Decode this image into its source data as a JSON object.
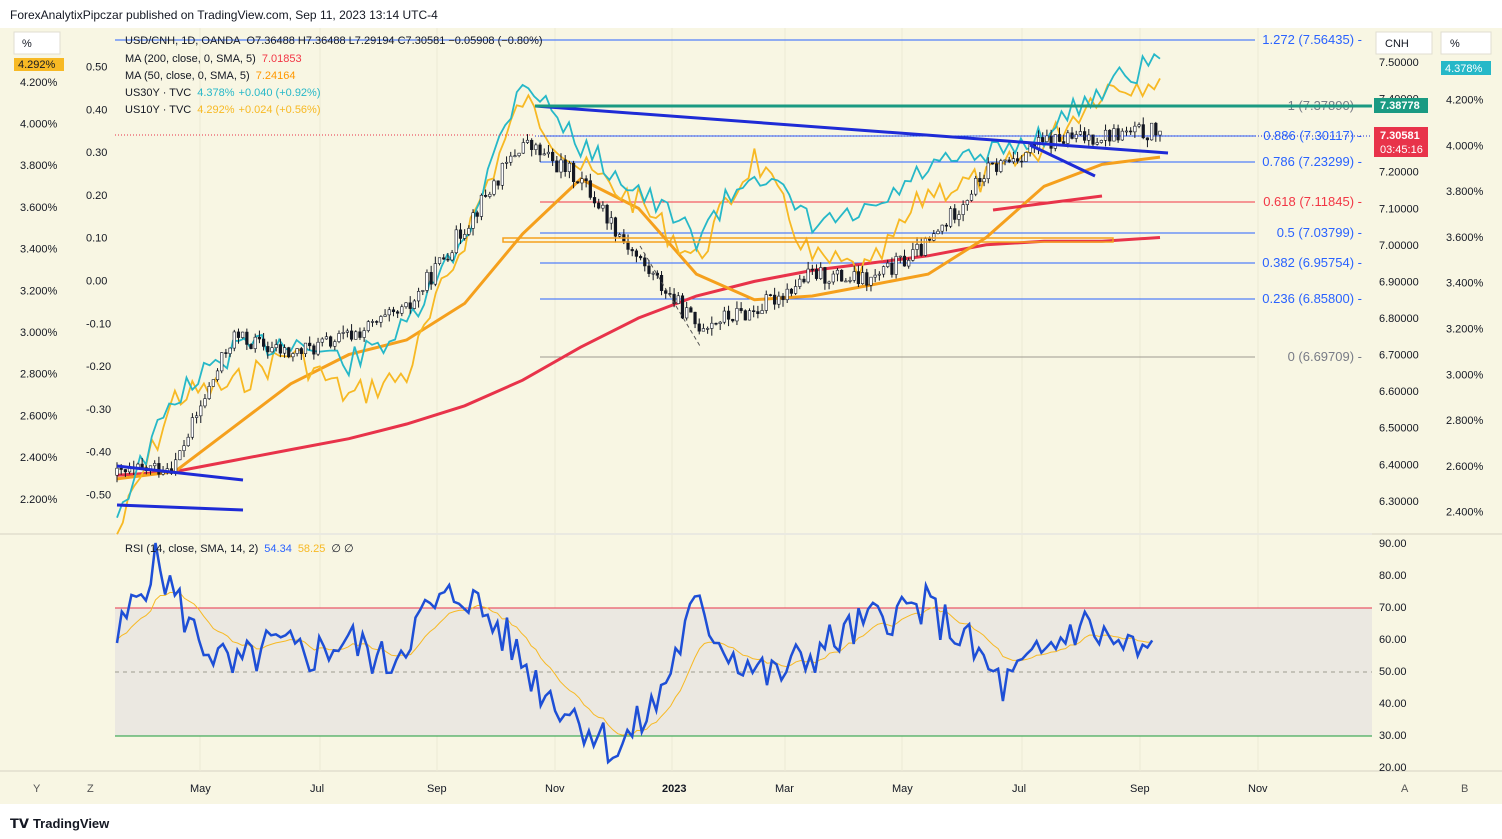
{
  "header": {
    "publisher_line": "ForexAnalytixPipczar published on TradingView.com, Sep 11, 2023 13:14 UTC-4"
  },
  "legend": {
    "main": {
      "symbol": "USD/CNH, 1D, OANDA",
      "ohlc": "O7.36488  H7.36488  L7.29194  C7.30581  −0.05908 (−0.80%)"
    },
    "ma200": {
      "label": "MA (200, close, 0, SMA, 5)",
      "value": "7.01853",
      "color": "#f23645"
    },
    "ma50": {
      "label": "MA (50, close, 0, SMA, 5)",
      "value": "7.24164",
      "color": "#ff9800"
    },
    "us30y": {
      "label": "US30Y · TVC",
      "value": "4.378%",
      "change": "+0.040 (+0.92%)",
      "color": "#26b8c8"
    },
    "us10y": {
      "label": "US10Y · TVC",
      "value": "4.292%",
      "change": "+0.024 (+0.56%)",
      "color": "#f7b924"
    }
  },
  "axes": {
    "left_pct_header": "%",
    "left_pct_badge": "4.292%",
    "left_pct_ticks": [
      "4.200%",
      "4.000%",
      "3.800%",
      "3.600%",
      "3.400%",
      "3.200%",
      "3.000%",
      "2.800%",
      "2.600%",
      "2.400%",
      "2.200%"
    ],
    "left_spread_ticks": [
      "0.50",
      "0.40",
      "0.30",
      "0.20",
      "0.10",
      "0.00",
      "-0.10",
      "-0.20",
      "-0.30",
      "-0.40",
      "-0.50"
    ],
    "right_price_header": "CNH",
    "right_price_ticks": [
      "7.50000",
      "7.40000",
      "7.30000",
      "7.20000",
      "7.10000",
      "7.00000",
      "6.90000",
      "6.80000",
      "6.70000",
      "6.60000",
      "6.50000",
      "6.40000",
      "6.30000"
    ],
    "right_pct_header": "%",
    "right_pct_badge": "4.378%",
    "right_pct_ticks": [
      "4.200%",
      "4.000%",
      "3.800%",
      "3.600%",
      "3.400%",
      "3.200%",
      "3.000%",
      "2.800%",
      "2.600%",
      "2.400%"
    ],
    "price_badge_top": "7.38778",
    "price_badge_last": "7.30581",
    "price_badge_countdown": "03:45:16",
    "rsi_ticks": [
      "90.00",
      "80.00",
      "70.00",
      "60.00",
      "50.00",
      "40.00",
      "30.00",
      "20.00"
    ],
    "time_labels": [
      "May",
      "Jul",
      "Sep",
      "Nov",
      "2023",
      "Mar",
      "May",
      "Jul",
      "Sep",
      "Nov"
    ],
    "bottom_buttons": {
      "y": "Y",
      "z": "Z",
      "a": "A",
      "b": "B"
    }
  },
  "fib": {
    "levels": [
      {
        "label": "1.272 (7.56435)",
        "color": "#2962ff"
      },
      {
        "label": "1 (7.37890)",
        "color": "#787b86"
      },
      {
        "label": "0.886 (7.30117)",
        "color": "#2962ff"
      },
      {
        "label": "0.786 (7.23299)",
        "color": "#2962ff"
      },
      {
        "label": "0.618 (7.11845)",
        "color": "#f23645"
      },
      {
        "label": "0.5 (7.03799)",
        "color": "#2962ff"
      },
      {
        "label": "0.382 (6.95754)",
        "color": "#2962ff"
      },
      {
        "label": "0.236 (6.85800)",
        "color": "#2962ff"
      },
      {
        "label": "0 (6.69709)",
        "color": "#787b86"
      }
    ]
  },
  "rsi": {
    "label": "RSI (14, close, SMA, 14, 2)",
    "value": "54.34",
    "sma_value": "58.25",
    "extra": "∅ ∅"
  },
  "footer": {
    "brand": "TradingView"
  },
  "colors": {
    "bg": "#f8f6e3",
    "rsi_band": "#ebe8e1",
    "blue_line": "#1e2bd6",
    "ma200": "#e8334a",
    "ma50": "#f5a01d"
  },
  "chart_data": {
    "type": "line",
    "title": "USD/CNH, 1D, OANDA",
    "x": [
      "2022-03",
      "2022-04",
      "2022-05",
      "2022-06",
      "2022-07",
      "2022-08",
      "2022-09",
      "2022-10",
      "2022-11",
      "2022-12",
      "2023-01",
      "2023-02",
      "2023-03",
      "2023-04",
      "2023-05",
      "2023-06",
      "2023-07",
      "2023-08",
      "2023-09"
    ],
    "series": [
      {
        "name": "USD/CNH",
        "values": [
          6.37,
          6.4,
          6.75,
          6.7,
          6.75,
          6.82,
          7.05,
          7.28,
          7.18,
          6.96,
          6.78,
          6.82,
          6.92,
          6.9,
          7.0,
          7.2,
          7.28,
          7.3,
          7.31
        ]
      },
      {
        "name": "MA (200, close, 0, SMA, 5)",
        "values": [
          6.37,
          6.38,
          6.41,
          6.44,
          6.47,
          6.51,
          6.56,
          6.63,
          6.72,
          6.8,
          6.86,
          6.9,
          6.93,
          6.95,
          6.97,
          7.0,
          7.01,
          7.01,
          7.02
        ]
      },
      {
        "name": "MA (50, close, 0, SMA, 5)",
        "values": [
          6.36,
          6.38,
          6.5,
          6.62,
          6.7,
          6.74,
          6.84,
          7.03,
          7.18,
          7.1,
          6.92,
          6.85,
          6.86,
          6.89,
          6.92,
          7.02,
          7.16,
          7.22,
          7.24
        ]
      },
      {
        "name": "US30Y · TVC",
        "values": [
          2.4,
          2.9,
          3.1,
          3.15,
          3.05,
          3.2,
          3.6,
          4.3,
          4.0,
          3.8,
          3.6,
          3.9,
          3.65,
          3.7,
          3.9,
          3.95,
          4.05,
          4.25,
          4.378
        ]
      },
      {
        "name": "US10Y · TVC",
        "values": [
          2.3,
          2.9,
          2.95,
          3.1,
          2.9,
          3.0,
          3.6,
          4.2,
          3.9,
          3.75,
          3.5,
          3.95,
          3.5,
          3.45,
          3.8,
          3.85,
          4.0,
          4.25,
          4.292
        ]
      }
    ],
    "ylim": [
      6.25,
      7.6
    ],
    "rsi": {
      "ylim": [
        20,
        90
      ],
      "overbought": 70,
      "oversold": 30,
      "mid": 50,
      "last": 54.34,
      "sma_last": 58.25
    }
  }
}
